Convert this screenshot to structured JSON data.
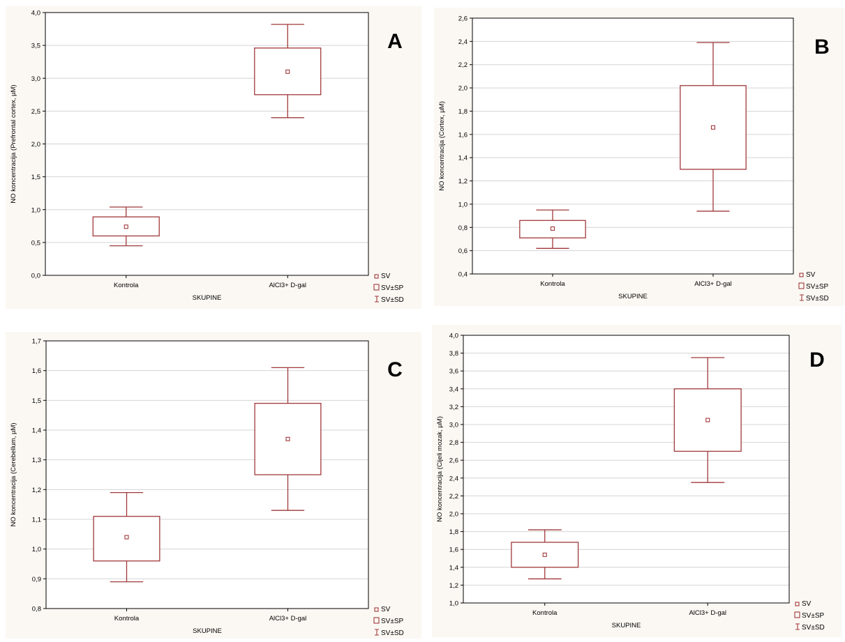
{
  "colors": {
    "panel_bg": "#fbf8f3",
    "plot_bg": "#ffffff",
    "mark": "#a0383a",
    "grid": "#d4d4d4"
  },
  "legend": {
    "mean": "SV",
    "box": "SV±SP",
    "whisker": "SV±SD"
  },
  "chart_data": [
    {
      "letter": "A",
      "type": "box",
      "xlabel": "SKUPINE",
      "ylabel": "NO koncentracija (Prefrontal cortex, µM)",
      "ylim": [
        0,
        4
      ],
      "yticks": [
        "0,0",
        "0,5",
        "1,0",
        "1,5",
        "2,0",
        "2,5",
        "3,0",
        "3,5",
        "4,0"
      ],
      "categories": [
        "Kontrola",
        "AlCl3+ D-gal"
      ],
      "groups": [
        {
          "mean": 0.74,
          "box": [
            0.6,
            0.89
          ],
          "whisker": [
            0.45,
            1.04
          ]
        },
        {
          "mean": 3.1,
          "box": [
            2.75,
            3.46
          ],
          "whisker": [
            2.4,
            3.82
          ]
        }
      ],
      "grid": true,
      "legend_position": "bottom-right"
    },
    {
      "letter": "B",
      "type": "box",
      "xlabel": "SKUPINE",
      "ylabel": "NO koncentracija (Cortex, µM)",
      "ylim": [
        0.4,
        2.6
      ],
      "yticks": [
        "0,4",
        "0,6",
        "0,8",
        "1,0",
        "1,2",
        "1,4",
        "1,6",
        "1,8",
        "2,0",
        "2,2",
        "2,4",
        "2,6"
      ],
      "categories": [
        "Kontrola",
        "AlCl3+ D-gal"
      ],
      "groups": [
        {
          "mean": 0.79,
          "box": [
            0.71,
            0.86
          ],
          "whisker": [
            0.62,
            0.95
          ]
        },
        {
          "mean": 1.66,
          "box": [
            1.3,
            2.02
          ],
          "whisker": [
            0.94,
            2.39
          ]
        }
      ],
      "grid": true,
      "legend_position": "bottom-right"
    },
    {
      "letter": "C",
      "type": "box",
      "xlabel": "SKUPINE",
      "ylabel": "NO koncentracija (Cerebellum, µM)",
      "ylim": [
        0.8,
        1.7
      ],
      "yticks": [
        "0,8",
        "0,9",
        "1,0",
        "1,1",
        "1,2",
        "1,3",
        "1,4",
        "1,5",
        "1,6",
        "1,7"
      ],
      "categories": [
        "Kontrola",
        "AlCl3+ D-gal"
      ],
      "groups": [
        {
          "mean": 1.04,
          "box": [
            0.96,
            1.11
          ],
          "whisker": [
            0.89,
            1.19
          ]
        },
        {
          "mean": 1.37,
          "box": [
            1.25,
            1.49
          ],
          "whisker": [
            1.13,
            1.61
          ]
        }
      ],
      "grid": true,
      "legend_position": "bottom-right"
    },
    {
      "letter": "D",
      "type": "box",
      "xlabel": "SKUPINE",
      "ylabel": "NO koncentracija (Cijeli mozak, µM)",
      "ylim": [
        1.0,
        4.0
      ],
      "yticks": [
        "1,0",
        "1,2",
        "1,4",
        "1,6",
        "1,8",
        "2,0",
        "2,2",
        "2,4",
        "2,6",
        "2,8",
        "3,0",
        "3,2",
        "3,4",
        "3,6",
        "3,8",
        "4,0"
      ],
      "categories": [
        "Kontrola",
        "AlCl3+ D-gal"
      ],
      "groups": [
        {
          "mean": 1.54,
          "box": [
            1.4,
            1.68
          ],
          "whisker": [
            1.27,
            1.82
          ]
        },
        {
          "mean": 3.05,
          "box": [
            2.7,
            3.4
          ],
          "whisker": [
            2.35,
            3.75
          ]
        }
      ],
      "grid": true,
      "legend_position": "bottom-right"
    }
  ]
}
